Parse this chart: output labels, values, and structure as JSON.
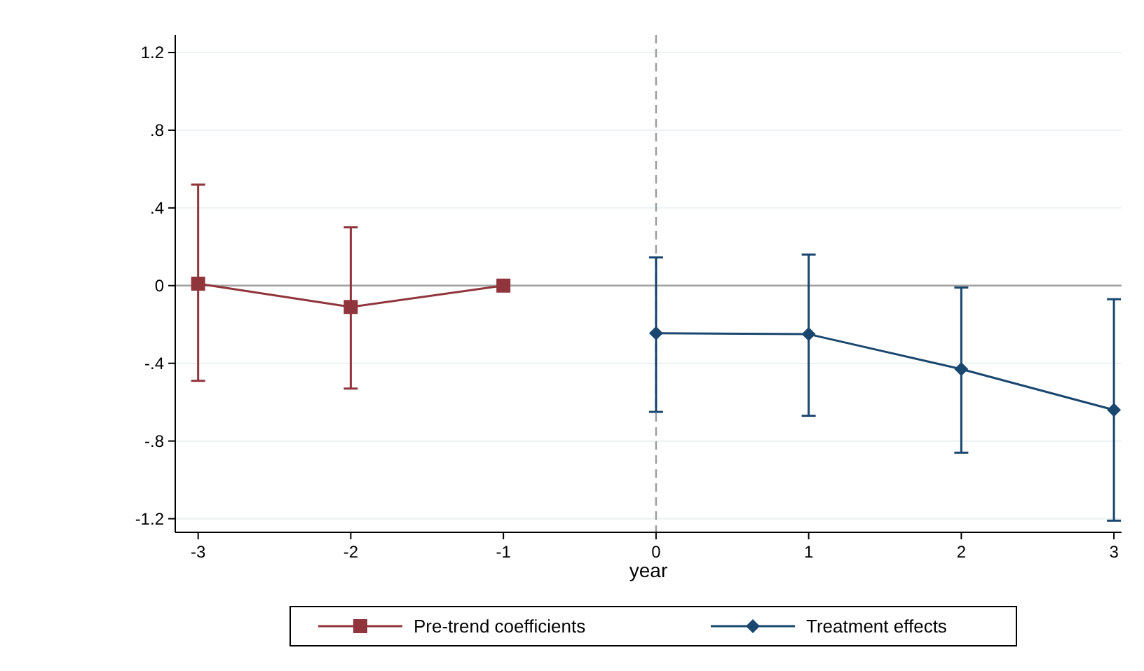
{
  "chart_data": {
    "type": "line",
    "xlabel": "year",
    "xlim": [
      -3.15,
      3.05
    ],
    "xticks": [
      {
        "value": -3,
        "label": "-3"
      },
      {
        "value": -2,
        "label": "-2"
      },
      {
        "value": -1,
        "label": "-1"
      },
      0,
      1,
      2,
      3
    ],
    "ylim": [
      -1.27,
      1.29
    ],
    "yticks": [
      {
        "value": -1.2,
        "label": "-1.2"
      },
      {
        "value": -0.8,
        "label": "-.8"
      },
      {
        "value": -0.4,
        "label": "-.4"
      },
      0,
      {
        "value": 0.4,
        "label": ".4"
      },
      {
        "value": 0.8,
        "label": ".8"
      },
      {
        "value": 1.2,
        "label": "1.2"
      }
    ],
    "grid": "y",
    "legend": "bottom",
    "line_style": "solid",
    "ref_lines": [
      {
        "axis": "y",
        "value": 0,
        "color": "#a0a0a0",
        "line_style": "solid"
      },
      {
        "axis": "x",
        "value": 0,
        "color": "#a0a0a0",
        "line_style": "dashed"
      }
    ],
    "series": [
      {
        "name": "Pre-trend coefficients",
        "color": "#90353b",
        "marker": "square",
        "x": [
          -3,
          -2,
          -1
        ],
        "values": [
          0.01,
          -0.11,
          0
        ],
        "errors": [
          [
            -0.49,
            0.52
          ],
          [
            -0.53,
            0.3
          ],
          null
        ]
      },
      {
        "name": "Treatment effects",
        "color": "#1a476f",
        "marker": "diamond",
        "x": [
          0,
          1,
          2,
          3
        ],
        "values": [
          -0.245,
          -0.25,
          -0.43,
          -0.64
        ],
        "errors": [
          [
            -0.65,
            0.145
          ],
          [
            -0.67,
            0.16
          ],
          [
            -0.86,
            -0.01
          ],
          [
            -1.21,
            -0.07
          ]
        ]
      }
    ]
  }
}
